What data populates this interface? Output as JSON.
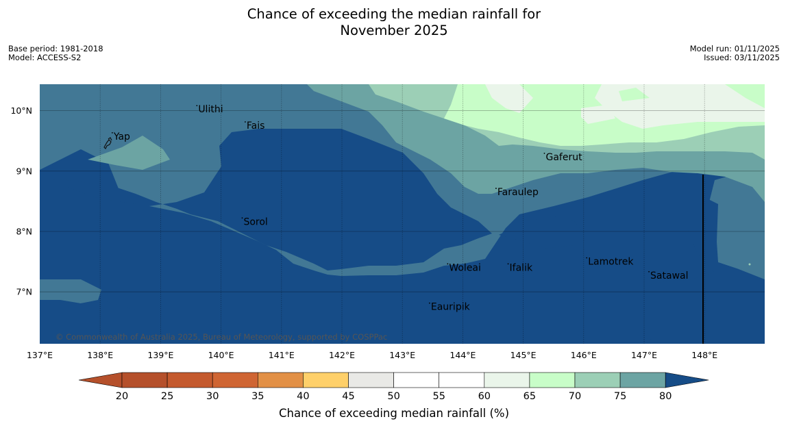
{
  "title_line1": "Chance of exceeding the median rainfall for",
  "title_line2": "November 2025",
  "base_period": "Base period: 1981-2018",
  "model": "Model: ACCESS-S2",
  "model_run": "Model run: 01/11/2025",
  "issued": "Issued: 03/11/2025",
  "copyright": "© Commonwealth of Australia 2025, Bureau of Meteorology, supported by COSPPac",
  "colors": {
    "c20": "#b5502b",
    "c25": "#c45a2e",
    "c30": "#cf6533",
    "c35": "#e29046",
    "c40": "#fed06a",
    "c45": "#e9e9e6",
    "c50": "#ffffff",
    "c55": "#ffffff",
    "c60": "#eaf5ea",
    "c65": "#c8fdc8",
    "c70": "#9ccfb6",
    "c75": "#6ca4a3",
    "c80": "#427895",
    "cmax": "#164c87"
  },
  "places": [
    {
      "name": "Yap",
      "lon": 138.2,
      "lat": 9.52
    },
    {
      "name": "Ulithi",
      "lon": 139.6,
      "lat": 9.97
    },
    {
      "name": "Fais",
      "lon": 140.4,
      "lat": 9.7
    },
    {
      "name": "Gaferut",
      "lon": 145.35,
      "lat": 9.18
    },
    {
      "name": "Faraulep",
      "lon": 144.55,
      "lat": 8.6
    },
    {
      "name": "Sorol",
      "lon": 140.35,
      "lat": 8.11
    },
    {
      "name": "Lamotrek",
      "lon": 146.05,
      "lat": 7.45
    },
    {
      "name": "Woleai",
      "lon": 143.75,
      "lat": 7.35
    },
    {
      "name": "Ifalik",
      "lon": 144.75,
      "lat": 7.35
    },
    {
      "name": "Satawal",
      "lon": 147.08,
      "lat": 7.22
    },
    {
      "name": "Eauripik",
      "lon": 143.45,
      "lat": 6.7
    }
  ],
  "lon_ticks": [
    {
      "value": 137,
      "label": "137°E"
    },
    {
      "value": 138,
      "label": "138°E"
    },
    {
      "value": 139,
      "label": "139°E"
    },
    {
      "value": 140,
      "label": "140°E"
    },
    {
      "value": 141,
      "label": "141°E"
    },
    {
      "value": 142,
      "label": "142°E"
    },
    {
      "value": 143,
      "label": "143°E"
    },
    {
      "value": 144,
      "label": "144°E"
    },
    {
      "value": 145,
      "label": "145°E"
    },
    {
      "value": 146,
      "label": "146°E"
    },
    {
      "value": 147,
      "label": "147°E"
    },
    {
      "value": 148,
      "label": "148°E"
    }
  ],
  "lat_ticks": [
    {
      "value": 10,
      "label": "10°N"
    },
    {
      "value": 9,
      "label": "9°N"
    },
    {
      "value": 8,
      "label": "8°N"
    },
    {
      "value": 7,
      "label": "7°N"
    }
  ],
  "colorbar_ticks": [
    "20",
    "25",
    "30",
    "35",
    "40",
    "45",
    "50",
    "55",
    "60",
    "65",
    "70",
    "75",
    "80"
  ],
  "colorbar_label": "Chance of exceeding median rainfall (%)",
  "map_extent": {
    "lon_min": 137,
    "lon_max": 149,
    "lat_min": 6.2,
    "lat_max": 10.5
  }
}
